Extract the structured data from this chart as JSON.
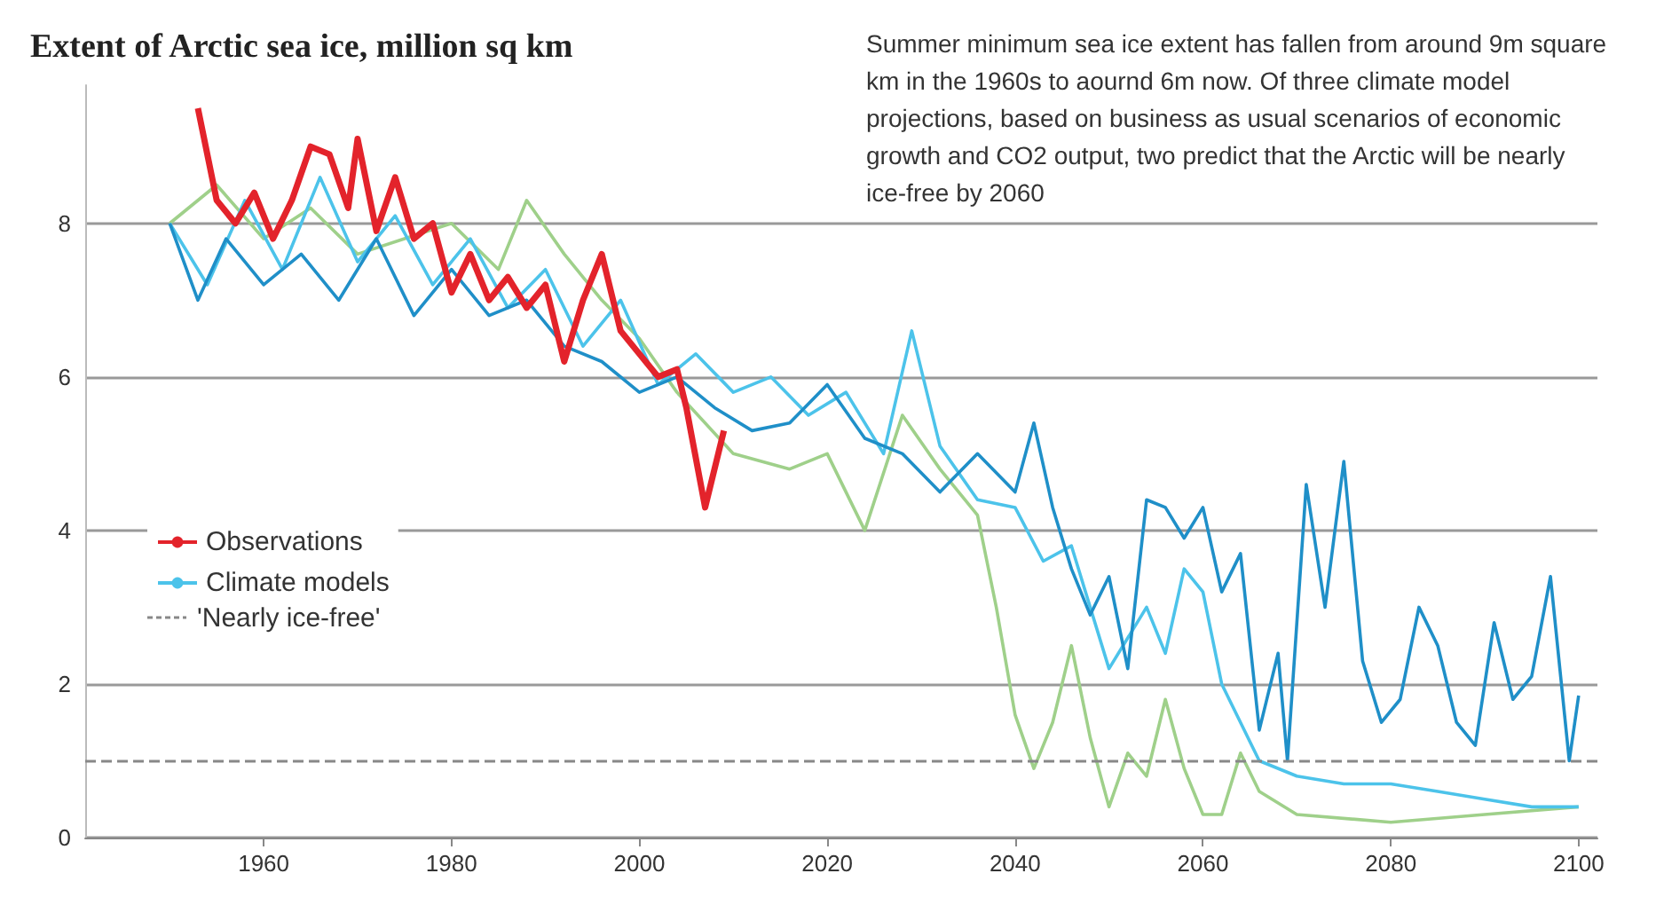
{
  "chart_data": {
    "type": "line",
    "title": "Extent of Arctic sea ice, million sq km",
    "annotations": [
      "Summer minimum sea ice extent has fallen from around 9m square km in the 1960s to aournd 6m now. Of three climate model projections, based on business as usual scenarios of economic growth and CO2 output, two predict that the Arctic will be nearly ice-free by 2060"
    ],
    "xlim": [
      1941,
      2102
    ],
    "xticks": [
      1960,
      1980,
      2000,
      2020,
      2040,
      2060,
      2080,
      2100
    ],
    "ylim": [
      0,
      9.8
    ],
    "yticks": [
      0,
      2,
      4,
      6,
      8
    ],
    "grid": "y",
    "legend": "left",
    "line_style": "solid",
    "marker": "none",
    "series": [
      {
        "color": "#9fd08a",
        "x": [
          1950,
          1955,
          1960,
          1965,
          1970,
          1975,
          1980,
          1985,
          1988,
          1992,
          1996,
          2000,
          2004,
          2010,
          2016,
          2020,
          2024,
          2028,
          2032,
          2036,
          2038,
          2040,
          2042,
          2044,
          2046,
          2048,
          2050,
          2052,
          2054,
          2056,
          2058,
          2060,
          2062,
          2064,
          2066,
          2070,
          2080,
          2090,
          2100
        ],
        "values": [
          8.0,
          8.5,
          7.8,
          8.2,
          7.6,
          7.8,
          8.0,
          7.4,
          8.3,
          7.6,
          7.0,
          6.5,
          5.8,
          5.0,
          4.8,
          5.0,
          4.0,
          5.5,
          4.8,
          4.2,
          3.0,
          1.6,
          0.9,
          1.5,
          2.5,
          1.3,
          0.4,
          1.1,
          0.8,
          1.8,
          0.9,
          0.3,
          0.3,
          1.1,
          0.6,
          0.3,
          0.2,
          0.3,
          0.4
        ]
      },
      {
        "name": "Climate models",
        "color": "#4cc3ea",
        "x": [
          1950,
          1954,
          1958,
          1962,
          1966,
          1970,
          1974,
          1978,
          1982,
          1986,
          1990,
          1994,
          1998,
          2002,
          2006,
          2010,
          2014,
          2018,
          2022,
          2026,
          2029,
          2032,
          2036,
          2040,
          2043,
          2046,
          2050,
          2054,
          2056,
          2058,
          2060,
          2062,
          2066,
          2070,
          2075,
          2080,
          2085,
          2090,
          2095,
          2100
        ],
        "values": [
          8.0,
          7.2,
          8.3,
          7.4,
          8.6,
          7.5,
          8.1,
          7.2,
          7.8,
          6.9,
          7.4,
          6.4,
          7.0,
          5.9,
          6.3,
          5.8,
          6.0,
          5.5,
          5.8,
          5.0,
          6.6,
          5.1,
          4.4,
          4.3,
          3.6,
          3.8,
          2.2,
          3.0,
          2.4,
          3.5,
          3.2,
          2.0,
          1.0,
          0.8,
          0.7,
          0.7,
          0.6,
          0.5,
          0.4,
          0.4
        ]
      },
      {
        "color": "#1f8fc8",
        "x": [
          1950,
          1953,
          1956,
          1960,
          1964,
          1968,
          1972,
          1976,
          1980,
          1984,
          1988,
          1992,
          1996,
          2000,
          2004,
          2008,
          2012,
          2016,
          2020,
          2024,
          2028,
          2032,
          2036,
          2040,
          2042,
          2044,
          2046,
          2048,
          2050,
          2052,
          2054,
          2056,
          2058,
          2060,
          2062,
          2064,
          2066,
          2068,
          2069,
          2071,
          2073,
          2075,
          2077,
          2079,
          2081,
          2083,
          2085,
          2087,
          2089,
          2091,
          2093,
          2095,
          2097,
          2099,
          2100
        ],
        "values": [
          8.0,
          7.0,
          7.8,
          7.2,
          7.6,
          7.0,
          7.8,
          6.8,
          7.4,
          6.8,
          7.0,
          6.4,
          6.2,
          5.8,
          6.0,
          5.6,
          5.3,
          5.4,
          5.9,
          5.2,
          5.0,
          4.5,
          5.0,
          4.5,
          5.4,
          4.3,
          3.5,
          2.9,
          3.4,
          2.2,
          4.4,
          4.3,
          3.9,
          4.3,
          3.2,
          3.7,
          1.4,
          2.4,
          1.0,
          4.6,
          3.0,
          4.9,
          2.3,
          1.5,
          1.8,
          3.0,
          2.5,
          1.5,
          1.2,
          2.8,
          1.8,
          2.1,
          3.4,
          1.0,
          1.85
        ]
      },
      {
        "name": "Observations",
        "color": "#e3232b",
        "x": [
          1953,
          1955,
          1957,
          1959,
          1961,
          1963,
          1965,
          1967,
          1969,
          1970,
          1972,
          1974,
          1976,
          1978,
          1980,
          1982,
          1984,
          1986,
          1988,
          1990,
          1992,
          1994,
          1996,
          1998,
          2000,
          2002,
          2004,
          2005,
          2007,
          2009
        ],
        "values": [
          9.5,
          8.3,
          8.0,
          8.4,
          7.8,
          8.3,
          9.0,
          8.9,
          8.2,
          9.1,
          7.9,
          8.6,
          7.8,
          8.0,
          7.1,
          7.6,
          7.0,
          7.3,
          6.9,
          7.2,
          6.2,
          7.0,
          7.6,
          6.6,
          6.3,
          6.0,
          6.1,
          5.6,
          4.3,
          5.3
        ]
      }
    ],
    "ref_lines": [
      {
        "axis": "y",
        "value": 1,
        "label": "'Nearly ice-free'",
        "color": "#888888",
        "line_style": "dashed"
      }
    ]
  }
}
